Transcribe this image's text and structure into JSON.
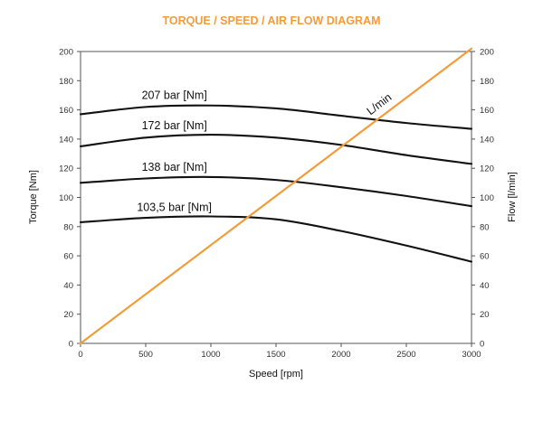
{
  "chart_data": {
    "type": "line",
    "title": "TORQUE / SPEED / AIR FLOW DIAGRAM",
    "xlabel": "Speed [rpm]",
    "ylabel": "Torque [Nm]",
    "ylabel_right": "Flow [l/min]",
    "xlim": [
      0,
      3000
    ],
    "ylim": [
      0,
      200
    ],
    "ylim_right": [
      0,
      200
    ],
    "x_ticks": [
      "0",
      "500",
      "1000",
      "1500",
      "2000",
      "2500",
      "3000"
    ],
    "y_ticks": [
      "0",
      "20",
      "40",
      "60",
      "80",
      "100",
      "120",
      "140",
      "160",
      "180",
      "200"
    ],
    "y_ticks_right": [
      "0",
      "20",
      "40",
      "60",
      "80",
      "100",
      "120",
      "140",
      "160",
      "180",
      "200"
    ],
    "grid": false,
    "colors": {
      "torque": "#111111",
      "flow": "#f39c3a",
      "title": "#f39c3a"
    },
    "series": [
      {
        "name": "207 bar [Nm]",
        "axis": "left",
        "color": "#111111",
        "x": [
          0,
          500,
          1000,
          1500,
          2000,
          2500,
          3000
        ],
        "y": [
          157,
          162,
          163,
          161,
          156,
          151,
          147
        ]
      },
      {
        "name": "172 bar [Nm]",
        "axis": "left",
        "color": "#111111",
        "x": [
          0,
          500,
          1000,
          1500,
          2000,
          2500,
          3000
        ],
        "y": [
          135,
          141,
          143,
          141,
          136,
          129,
          123
        ]
      },
      {
        "name": "138 bar [Nm]",
        "axis": "left",
        "color": "#111111",
        "x": [
          0,
          500,
          1000,
          1500,
          2000,
          2500,
          3000
        ],
        "y": [
          110,
          113,
          114,
          112,
          107,
          101,
          94
        ]
      },
      {
        "name": "103,5 bar [Nm]",
        "axis": "left",
        "color": "#111111",
        "x": [
          0,
          500,
          1000,
          1500,
          2000,
          2500,
          3000
        ],
        "y": [
          83,
          86,
          87,
          85,
          77,
          67,
          56
        ]
      },
      {
        "name": "L/min",
        "axis": "right",
        "color": "#f39c3a",
        "x": [
          0,
          3000
        ],
        "y": [
          0,
          202
        ]
      }
    ]
  }
}
